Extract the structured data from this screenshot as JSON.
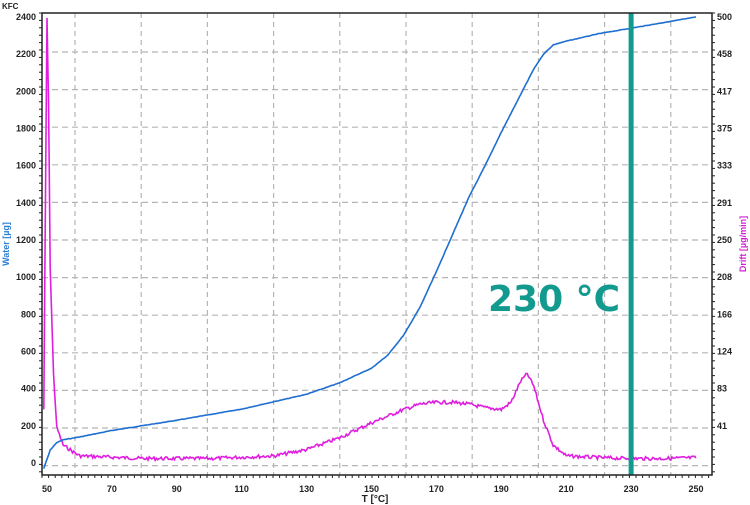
{
  "chart_data": {
    "type": "line",
    "title": "",
    "corner_label": "KFC",
    "xlabel": "T [°C]",
    "ylabel": "Water [µg]",
    "ylabel_right": "Drift [µg/min]",
    "xlim": [
      48,
      252
    ],
    "ylim": [
      -50,
      2430
    ],
    "ylim_right": [
      -10,
      506
    ],
    "x_ticks": [
      "50",
      "70",
      "90",
      "110",
      "130",
      "150",
      "170",
      "190",
      "210",
      "230",
      "250"
    ],
    "y_ticks": [
      "0",
      "200",
      "400",
      "600",
      "800",
      "1000",
      "1200",
      "1400",
      "1600",
      "1800",
      "2000",
      "2200",
      "2400"
    ],
    "y_ticks_right": [
      "41",
      "83",
      "124",
      "166",
      "208",
      "250",
      "291",
      "333",
      "375",
      "417",
      "458",
      "500"
    ],
    "grid": true,
    "legend": "none",
    "series": [
      {
        "name": "Water [µg]",
        "axis": "left",
        "color": "#1f6fd1",
        "x": [
          49,
          50,
          51,
          53,
          55,
          60,
          70,
          90,
          110,
          130,
          140,
          150,
          155,
          160,
          165,
          170,
          175,
          180,
          185,
          190,
          195,
          200,
          203,
          206,
          210,
          220,
          230,
          240,
          250
        ],
        "y": [
          -30,
          20,
          70,
          110,
          125,
          140,
          175,
          230,
          290,
          370,
          430,
          510,
          580,
          690,
          840,
          1030,
          1230,
          1430,
          1600,
          1780,
          1950,
          2120,
          2200,
          2250,
          2270,
          2310,
          2340,
          2370,
          2400
        ]
      },
      {
        "name": "Drift [µg/min]",
        "axis": "right",
        "color": "#e01ee0",
        "x": [
          49,
          50,
          50.5,
          51,
          52,
          53,
          55,
          60,
          80,
          100,
          120,
          130,
          140,
          150,
          160,
          165,
          170,
          175,
          180,
          185,
          190,
          193,
          196,
          198,
          200,
          203,
          206,
          210,
          220,
          230,
          240,
          250
        ],
        "y": [
          60,
          498,
          400,
          220,
          100,
          40,
          20,
          8,
          5,
          5,
          8,
          15,
          28,
          45,
          60,
          66,
          68,
          68,
          66,
          62,
          60,
          68,
          92,
          100,
          86,
          48,
          20,
          8,
          6,
          5,
          5,
          6
        ]
      }
    ],
    "annotations": [
      {
        "type": "vline",
        "x": 230,
        "color": "#139a8f",
        "label": "230 °C"
      }
    ]
  },
  "annotation_label": "230 °C",
  "colors": {
    "water": "#1f6fd1",
    "drift": "#e01ee0",
    "marker": "#139a8f",
    "grid": "#b5b5b5"
  }
}
